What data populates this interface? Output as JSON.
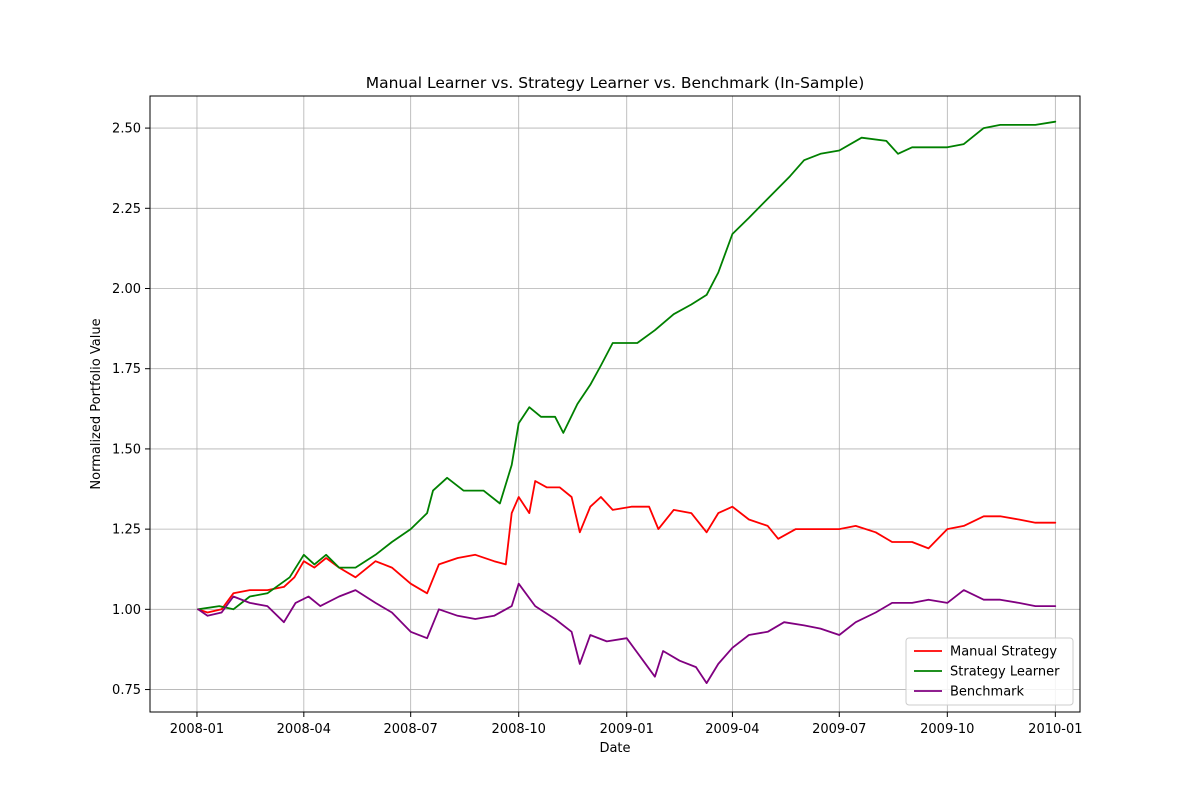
{
  "chart_data": {
    "type": "line",
    "title": "Manual Learner vs. Strategy Learner vs. Benchmark (In-Sample)",
    "xlabel": "Date",
    "ylabel": "Normalized Portfolio Value",
    "xlim": [
      "2007-11-22",
      "2010-01-22"
    ],
    "ylim": [
      0.68,
      2.6
    ],
    "grid": true,
    "legend_position": "lower-right",
    "x_ticks": [
      "2008-01",
      "2008-04",
      "2008-07",
      "2008-10",
      "2009-01",
      "2009-04",
      "2009-07",
      "2009-10",
      "2010-01"
    ],
    "y_ticks": [
      "0.75",
      "1.00",
      "1.25",
      "1.50",
      "1.75",
      "2.00",
      "2.25",
      "2.50"
    ],
    "series": [
      {
        "name": "Manual Strategy",
        "color": "#ff0000",
        "points": [
          [
            "2008-01-02",
            1.0
          ],
          [
            "2008-01-10",
            0.99
          ],
          [
            "2008-01-22",
            1.0
          ],
          [
            "2008-02-01",
            1.05
          ],
          [
            "2008-02-15",
            1.06
          ],
          [
            "2008-03-01",
            1.06
          ],
          [
            "2008-03-15",
            1.07
          ],
          [
            "2008-03-24",
            1.1
          ],
          [
            "2008-04-01",
            1.15
          ],
          [
            "2008-04-10",
            1.13
          ],
          [
            "2008-04-20",
            1.16
          ],
          [
            "2008-05-01",
            1.13
          ],
          [
            "2008-05-15",
            1.1
          ],
          [
            "2008-06-01",
            1.15
          ],
          [
            "2008-06-15",
            1.13
          ],
          [
            "2008-07-01",
            1.08
          ],
          [
            "2008-07-15",
            1.05
          ],
          [
            "2008-07-25",
            1.14
          ],
          [
            "2008-08-10",
            1.16
          ],
          [
            "2008-08-25",
            1.17
          ],
          [
            "2008-09-10",
            1.15
          ],
          [
            "2008-09-20",
            1.14
          ],
          [
            "2008-09-25",
            1.3
          ],
          [
            "2008-10-01",
            1.35
          ],
          [
            "2008-10-10",
            1.3
          ],
          [
            "2008-10-15",
            1.4
          ],
          [
            "2008-10-25",
            1.38
          ],
          [
            "2008-11-05",
            1.38
          ],
          [
            "2008-11-15",
            1.35
          ],
          [
            "2008-11-22",
            1.24
          ],
          [
            "2008-12-01",
            1.32
          ],
          [
            "2008-12-10",
            1.35
          ],
          [
            "2008-12-20",
            1.31
          ],
          [
            "2009-01-05",
            1.32
          ],
          [
            "2009-01-20",
            1.32
          ],
          [
            "2009-01-28",
            1.25
          ],
          [
            "2009-02-10",
            1.31
          ],
          [
            "2009-02-25",
            1.3
          ],
          [
            "2009-03-10",
            1.24
          ],
          [
            "2009-03-20",
            1.3
          ],
          [
            "2009-04-01",
            1.32
          ],
          [
            "2009-04-15",
            1.28
          ],
          [
            "2009-05-01",
            1.26
          ],
          [
            "2009-05-10",
            1.22
          ],
          [
            "2009-05-25",
            1.25
          ],
          [
            "2009-06-15",
            1.25
          ],
          [
            "2009-07-01",
            1.25
          ],
          [
            "2009-07-15",
            1.26
          ],
          [
            "2009-08-01",
            1.24
          ],
          [
            "2009-08-15",
            1.21
          ],
          [
            "2009-09-01",
            1.21
          ],
          [
            "2009-09-15",
            1.19
          ],
          [
            "2009-10-01",
            1.25
          ],
          [
            "2009-10-15",
            1.26
          ],
          [
            "2009-11-01",
            1.29
          ],
          [
            "2009-11-15",
            1.29
          ],
          [
            "2009-12-01",
            1.28
          ],
          [
            "2009-12-15",
            1.27
          ],
          [
            "2010-01-01",
            1.27
          ]
        ]
      },
      {
        "name": "Strategy Learner",
        "color": "#008000",
        "points": [
          [
            "2008-01-02",
            1.0
          ],
          [
            "2008-01-20",
            1.01
          ],
          [
            "2008-02-01",
            1.0
          ],
          [
            "2008-02-15",
            1.04
          ],
          [
            "2008-03-01",
            1.05
          ],
          [
            "2008-03-20",
            1.1
          ],
          [
            "2008-04-01",
            1.17
          ],
          [
            "2008-04-10",
            1.14
          ],
          [
            "2008-04-20",
            1.17
          ],
          [
            "2008-05-01",
            1.13
          ],
          [
            "2008-05-15",
            1.13
          ],
          [
            "2008-06-01",
            1.17
          ],
          [
            "2008-06-15",
            1.21
          ],
          [
            "2008-07-01",
            1.25
          ],
          [
            "2008-07-15",
            1.3
          ],
          [
            "2008-07-20",
            1.37
          ],
          [
            "2008-08-01",
            1.41
          ],
          [
            "2008-08-15",
            1.37
          ],
          [
            "2008-09-01",
            1.37
          ],
          [
            "2008-09-15",
            1.33
          ],
          [
            "2008-09-25",
            1.45
          ],
          [
            "2008-10-01",
            1.58
          ],
          [
            "2008-10-10",
            1.63
          ],
          [
            "2008-10-20",
            1.6
          ],
          [
            "2008-11-01",
            1.6
          ],
          [
            "2008-11-08",
            1.55
          ],
          [
            "2008-11-20",
            1.64
          ],
          [
            "2008-12-01",
            1.7
          ],
          [
            "2008-12-10",
            1.76
          ],
          [
            "2008-12-20",
            1.83
          ],
          [
            "2009-01-10",
            1.83
          ],
          [
            "2009-01-25",
            1.87
          ],
          [
            "2009-02-10",
            1.92
          ],
          [
            "2009-02-25",
            1.95
          ],
          [
            "2009-03-10",
            1.98
          ],
          [
            "2009-03-20",
            2.05
          ],
          [
            "2009-04-01",
            2.17
          ],
          [
            "2009-04-15",
            2.22
          ],
          [
            "2009-05-01",
            2.28
          ],
          [
            "2009-05-20",
            2.35
          ],
          [
            "2009-06-01",
            2.4
          ],
          [
            "2009-06-15",
            2.42
          ],
          [
            "2009-07-01",
            2.43
          ],
          [
            "2009-07-20",
            2.47
          ],
          [
            "2009-08-10",
            2.46
          ],
          [
            "2009-08-20",
            2.42
          ],
          [
            "2009-09-01",
            2.44
          ],
          [
            "2009-09-15",
            2.44
          ],
          [
            "2009-10-01",
            2.44
          ],
          [
            "2009-10-15",
            2.45
          ],
          [
            "2009-11-01",
            2.5
          ],
          [
            "2009-11-15",
            2.51
          ],
          [
            "2009-12-01",
            2.51
          ],
          [
            "2009-12-15",
            2.51
          ],
          [
            "2010-01-01",
            2.52
          ]
        ]
      },
      {
        "name": "Benchmark",
        "color": "#800080",
        "points": [
          [
            "2008-01-02",
            1.0
          ],
          [
            "2008-01-10",
            0.98
          ],
          [
            "2008-01-22",
            0.99
          ],
          [
            "2008-02-01",
            1.04
          ],
          [
            "2008-02-15",
            1.02
          ],
          [
            "2008-03-01",
            1.01
          ],
          [
            "2008-03-15",
            0.96
          ],
          [
            "2008-03-25",
            1.02
          ],
          [
            "2008-04-05",
            1.04
          ],
          [
            "2008-04-15",
            1.01
          ],
          [
            "2008-05-01",
            1.04
          ],
          [
            "2008-05-15",
            1.06
          ],
          [
            "2008-06-01",
            1.02
          ],
          [
            "2008-06-15",
            0.99
          ],
          [
            "2008-07-01",
            0.93
          ],
          [
            "2008-07-15",
            0.91
          ],
          [
            "2008-07-25",
            1.0
          ],
          [
            "2008-08-10",
            0.98
          ],
          [
            "2008-08-25",
            0.97
          ],
          [
            "2008-09-10",
            0.98
          ],
          [
            "2008-09-25",
            1.01
          ],
          [
            "2008-10-01",
            1.08
          ],
          [
            "2008-10-15",
            1.01
          ],
          [
            "2008-11-01",
            0.97
          ],
          [
            "2008-11-15",
            0.93
          ],
          [
            "2008-11-22",
            0.83
          ],
          [
            "2008-12-01",
            0.92
          ],
          [
            "2008-12-15",
            0.9
          ],
          [
            "2009-01-01",
            0.91
          ],
          [
            "2009-01-15",
            0.84
          ],
          [
            "2009-01-25",
            0.79
          ],
          [
            "2009-02-01",
            0.87
          ],
          [
            "2009-02-15",
            0.84
          ],
          [
            "2009-03-01",
            0.82
          ],
          [
            "2009-03-10",
            0.77
          ],
          [
            "2009-03-20",
            0.83
          ],
          [
            "2009-04-01",
            0.88
          ],
          [
            "2009-04-15",
            0.92
          ],
          [
            "2009-05-01",
            0.93
          ],
          [
            "2009-05-15",
            0.96
          ],
          [
            "2009-06-01",
            0.95
          ],
          [
            "2009-06-15",
            0.94
          ],
          [
            "2009-07-01",
            0.92
          ],
          [
            "2009-07-15",
            0.96
          ],
          [
            "2009-08-01",
            0.99
          ],
          [
            "2009-08-15",
            1.02
          ],
          [
            "2009-09-01",
            1.02
          ],
          [
            "2009-09-15",
            1.03
          ],
          [
            "2009-10-01",
            1.02
          ],
          [
            "2009-10-15",
            1.06
          ],
          [
            "2009-11-01",
            1.03
          ],
          [
            "2009-11-15",
            1.03
          ],
          [
            "2009-12-01",
            1.02
          ],
          [
            "2009-12-15",
            1.01
          ],
          [
            "2010-01-01",
            1.01
          ]
        ]
      }
    ]
  }
}
